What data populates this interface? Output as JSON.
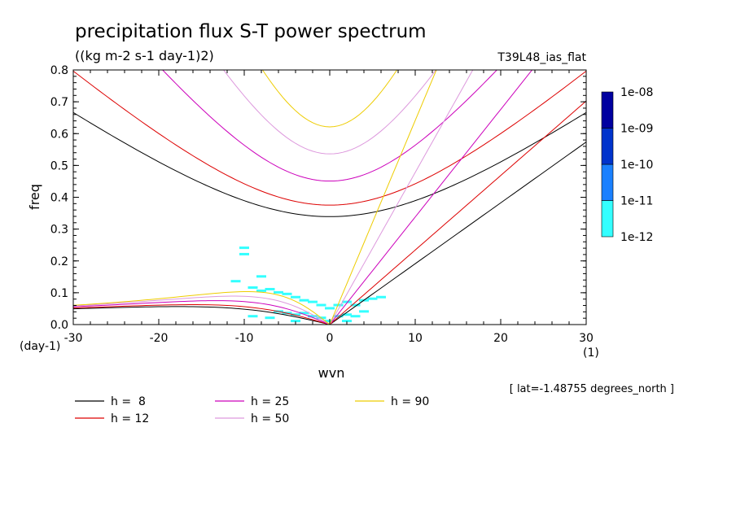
{
  "chart_data": {
    "type": "contour",
    "title": "precipitation flux S-T power spectrum",
    "units": "((kg m-2 s-1 day-1)2)",
    "experiment": "T39L48_ias_flat",
    "xlabel": "wvn",
    "ylabel": "freq",
    "xunit": "(1)",
    "yunit": "(day-1)",
    "xlim": [
      -30,
      30
    ],
    "ylim": [
      0,
      0.8
    ],
    "xticks": [
      -30,
      -20,
      -10,
      0,
      10,
      20,
      30
    ],
    "yticks": [
      0.0,
      0.1,
      0.2,
      0.3,
      0.4,
      0.5,
      0.6,
      0.7,
      0.8
    ],
    "ytick_labels": [
      "0.0",
      "0.1",
      "0.2",
      "0.3",
      "0.4",
      "0.5",
      "0.6",
      "0.7",
      "0.8"
    ],
    "xtick_labels": [
      "-30",
      "-20",
      "-10",
      "0",
      "10",
      "20",
      "30"
    ],
    "footer_note": "[ lat=-1.48755 degrees_north ]",
    "colorbar": {
      "levels": [
        "1e-12",
        "1e-11",
        "1e-10",
        "1e-09",
        "1e-08"
      ],
      "colors": [
        "#33ffff",
        "#1a80ff",
        "#0033cc",
        "#0000a0",
        "#4b0fae"
      ]
    },
    "dispersion_series": [
      {
        "name": "h =  8",
        "h": 8,
        "color": "#000000",
        "legend": "h =  8"
      },
      {
        "name": "h = 12",
        "h": 12,
        "color": "#dd0000",
        "legend": "h = 12"
      },
      {
        "name": "h = 25",
        "h": 25,
        "color": "#cc00bb",
        "legend": "h = 25"
      },
      {
        "name": "h = 50",
        "h": 50,
        "color": "#dd99dd",
        "legend": "h = 50"
      },
      {
        "name": "h = 90",
        "h": 90,
        "color": "#eecc00",
        "legend": "h = 90"
      }
    ],
    "spectral_patches": [
      {
        "wvn": -10,
        "freq": 0.24,
        "level": "1e-12"
      },
      {
        "wvn": -8,
        "freq": 0.15,
        "level": "1e-12"
      },
      {
        "wvn": -9,
        "freq": 0.115,
        "level": "1e-12"
      },
      {
        "wvn": -8,
        "freq": 0.105,
        "level": "1e-12"
      },
      {
        "wvn": -7,
        "freq": 0.11,
        "level": "1e-12"
      },
      {
        "wvn": -6,
        "freq": 0.1,
        "level": "1e-12"
      },
      {
        "wvn": -5,
        "freq": 0.095,
        "level": "1e-12"
      },
      {
        "wvn": -4,
        "freq": 0.085,
        "level": "1e-12"
      },
      {
        "wvn": -3,
        "freq": 0.075,
        "level": "1e-12"
      },
      {
        "wvn": -2,
        "freq": 0.07,
        "level": "1e-12"
      },
      {
        "wvn": -1,
        "freq": 0.06,
        "level": "1e-12"
      },
      {
        "wvn": 0,
        "freq": 0.05,
        "level": "1e-12"
      },
      {
        "wvn": 1,
        "freq": 0.06,
        "level": "1e-12"
      },
      {
        "wvn": 2,
        "freq": 0.07,
        "level": "1e-12"
      },
      {
        "wvn": 3,
        "freq": 0.06,
        "level": "1e-12"
      },
      {
        "wvn": 4,
        "freq": 0.075,
        "level": "1e-12"
      },
      {
        "wvn": 5,
        "freq": 0.08,
        "level": "1e-12"
      },
      {
        "wvn": 6,
        "freq": 0.085,
        "level": "1e-12"
      },
      {
        "wvn": -6,
        "freq": 0.04,
        "level": "1e-12"
      },
      {
        "wvn": -5,
        "freq": 0.035,
        "level": "1e-12"
      },
      {
        "wvn": -4,
        "freq": 0.03,
        "level": "1e-12"
      },
      {
        "wvn": -3,
        "freq": 0.035,
        "level": "1e-12"
      },
      {
        "wvn": -2,
        "freq": 0.025,
        "level": "1e-12"
      },
      {
        "wvn": -1,
        "freq": 0.02,
        "level": "1e-12"
      },
      {
        "wvn": 1,
        "freq": 0.025,
        "level": "1e-12"
      },
      {
        "wvn": 2,
        "freq": 0.03,
        "level": "1e-12"
      },
      {
        "wvn": 3,
        "freq": 0.025,
        "level": "1e-12"
      },
      {
        "wvn": 4,
        "freq": 0.04,
        "level": "1e-12"
      },
      {
        "wvn": -9,
        "freq": 0.025,
        "level": "1e-12"
      },
      {
        "wvn": -7,
        "freq": 0.02,
        "level": "1e-12"
      },
      {
        "wvn": -4,
        "freq": 0.01,
        "level": "1e-12"
      },
      {
        "wvn": 0,
        "freq": 0.01,
        "level": "1e-12"
      },
      {
        "wvn": 2,
        "freq": 0.01,
        "level": "1e-12"
      },
      {
        "wvn": -11,
        "freq": 0.135,
        "level": "1e-12"
      },
      {
        "wvn": -10,
        "freq": 0.22,
        "level": "1e-12"
      }
    ]
  }
}
